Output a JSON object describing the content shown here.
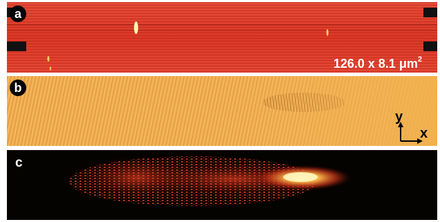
{
  "panels": {
    "a": {
      "label": "a",
      "scale_value": "126.0 x 8.1",
      "scale_unit": "μm",
      "scale_exponent": "2"
    },
    "b": {
      "label": "b",
      "axis_y": "y",
      "axis_x": "x"
    },
    "c": {
      "label": "c"
    }
  },
  "colors": {
    "panel_a_base": "#d83a2a",
    "panel_b_base": "#f2b24e",
    "panel_c_base": "#050300",
    "highlight": "#fff1a0"
  }
}
